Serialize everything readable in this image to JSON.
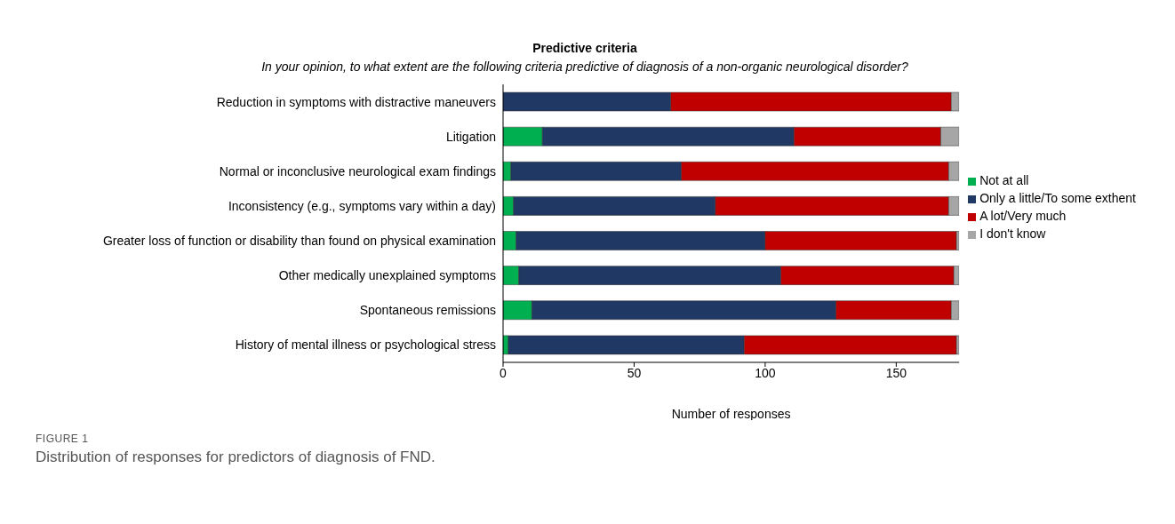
{
  "chart_data": {
    "type": "bar",
    "orientation": "horizontal",
    "stacked": true,
    "title": "Predictive criteria",
    "subtitle": "In your opinion, to what extent are the following criteria predictive of diagnosis of a non-organic neurological disorder?",
    "xlabel": "Number of responses",
    "categories": [
      "Reduction in symptoms with distractive maneuvers",
      "Litigation",
      "Normal or inconclusive neurological exam findings",
      "Inconsistency (e.g., symptoms vary within a day)",
      "Greater loss of function or disability than found on physical examination",
      "Other medically unexplained symptoms",
      "Spontaneous remissions",
      "History of mental illness or psychological stress"
    ],
    "series": [
      {
        "name": "Not at all",
        "color": "#00b050",
        "values": [
          0,
          15,
          3,
          4,
          5,
          6,
          11,
          2
        ]
      },
      {
        "name": "Only a little/To some exthent",
        "color": "#203864",
        "values": [
          64,
          96,
          65,
          77,
          95,
          100,
          116,
          90
        ]
      },
      {
        "name": "A lot/Very much",
        "color": "#c00000",
        "values": [
          107,
          56,
          102,
          89,
          73,
          66,
          44,
          81
        ]
      },
      {
        "name": "I don't know",
        "color": "#a6a6a6",
        "values": [
          3,
          7,
          4,
          4,
          1,
          2,
          3,
          1
        ]
      }
    ],
    "xlim": [
      0,
      174
    ],
    "xticks": [
      0,
      50,
      100,
      150
    ],
    "grid": false,
    "legend": "right",
    "annotations": [
      "FIGURE 1",
      "Distribution of responses for predictors of diagnosis of FND."
    ]
  }
}
